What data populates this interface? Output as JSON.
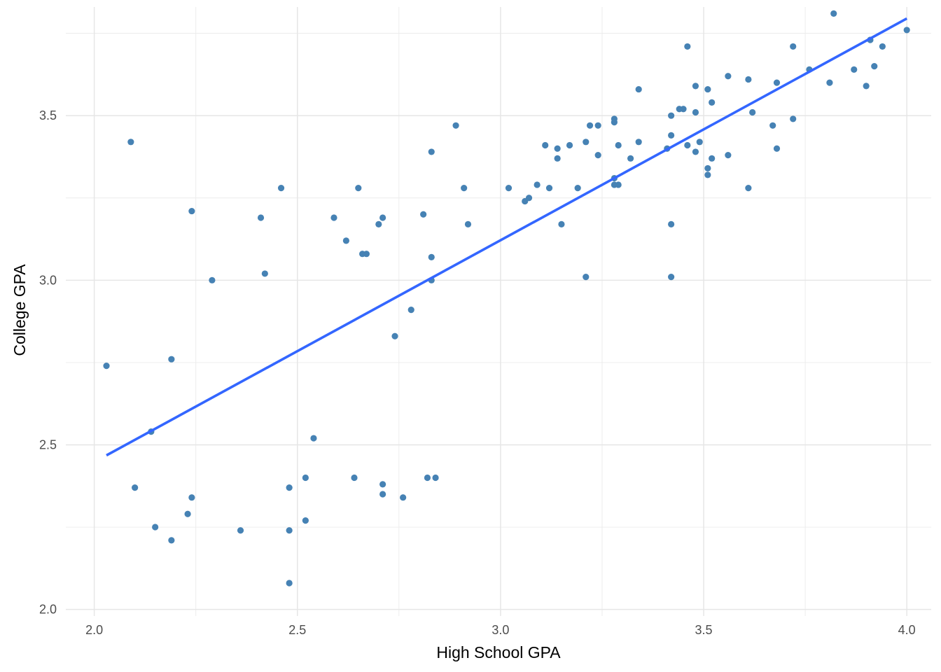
{
  "chart_data": {
    "type": "scatter",
    "title": "",
    "xlabel": "High School GPA",
    "ylabel": "College GPA",
    "xlim": [
      1.93,
      4.06
    ],
    "ylim": [
      1.98,
      3.83
    ],
    "x_ticks": [
      "2.0",
      "2.5",
      "3.0",
      "3.5",
      "4.0"
    ],
    "y_ticks": [
      "2.0",
      "2.5",
      "3.0",
      "3.5"
    ],
    "grid": true,
    "point_color": "#4682B4",
    "line_color": "#3366FF",
    "points": [
      [
        2.03,
        2.74
      ],
      [
        2.09,
        3.42
      ],
      [
        2.1,
        2.37
      ],
      [
        2.14,
        2.54
      ],
      [
        2.15,
        2.25
      ],
      [
        2.19,
        2.76
      ],
      [
        2.19,
        2.21
      ],
      [
        2.23,
        2.29
      ],
      [
        2.24,
        3.21
      ],
      [
        2.24,
        2.34
      ],
      [
        2.29,
        3.0
      ],
      [
        2.36,
        2.24
      ],
      [
        2.41,
        3.19
      ],
      [
        2.42,
        3.02
      ],
      [
        2.46,
        3.28
      ],
      [
        2.48,
        2.37
      ],
      [
        2.48,
        2.24
      ],
      [
        2.48,
        2.08
      ],
      [
        2.52,
        2.4
      ],
      [
        2.52,
        2.27
      ],
      [
        2.54,
        2.52
      ],
      [
        2.59,
        3.19
      ],
      [
        2.62,
        3.12
      ],
      [
        2.64,
        2.4
      ],
      [
        2.65,
        3.28
      ],
      [
        2.66,
        3.08
      ],
      [
        2.67,
        3.08
      ],
      [
        2.7,
        3.17
      ],
      [
        2.71,
        3.19
      ],
      [
        2.71,
        2.38
      ],
      [
        2.71,
        2.35
      ],
      [
        2.74,
        2.83
      ],
      [
        2.76,
        2.34
      ],
      [
        2.78,
        2.91
      ],
      [
        2.81,
        3.2
      ],
      [
        2.82,
        2.4
      ],
      [
        2.83,
        3.39
      ],
      [
        2.83,
        3.07
      ],
      [
        2.83,
        3.0
      ],
      [
        2.84,
        2.4
      ],
      [
        2.89,
        3.47
      ],
      [
        2.91,
        3.28
      ],
      [
        2.92,
        3.17
      ],
      [
        3.02,
        3.28
      ],
      [
        3.06,
        3.24
      ],
      [
        3.07,
        3.25
      ],
      [
        3.09,
        3.29
      ],
      [
        3.11,
        3.41
      ],
      [
        3.12,
        3.28
      ],
      [
        3.14,
        3.4
      ],
      [
        3.14,
        3.37
      ],
      [
        3.15,
        3.17
      ],
      [
        3.17,
        3.41
      ],
      [
        3.19,
        3.28
      ],
      [
        3.21,
        3.42
      ],
      [
        3.21,
        3.01
      ],
      [
        3.22,
        3.47
      ],
      [
        3.24,
        3.47
      ],
      [
        3.24,
        3.38
      ],
      [
        3.28,
        3.49
      ],
      [
        3.28,
        3.48
      ],
      [
        3.28,
        3.31
      ],
      [
        3.28,
        3.29
      ],
      [
        3.29,
        3.41
      ],
      [
        3.29,
        3.29
      ],
      [
        3.32,
        3.37
      ],
      [
        3.34,
        3.58
      ],
      [
        3.34,
        3.42
      ],
      [
        3.41,
        3.4
      ],
      [
        3.42,
        3.5
      ],
      [
        3.42,
        3.44
      ],
      [
        3.42,
        3.17
      ],
      [
        3.42,
        3.01
      ],
      [
        3.44,
        3.52
      ],
      [
        3.45,
        3.52
      ],
      [
        3.46,
        3.71
      ],
      [
        3.46,
        3.41
      ],
      [
        3.48,
        3.59
      ],
      [
        3.48,
        3.51
      ],
      [
        3.48,
        3.39
      ],
      [
        3.49,
        3.42
      ],
      [
        3.51,
        3.58
      ],
      [
        3.51,
        3.34
      ],
      [
        3.51,
        3.32
      ],
      [
        3.52,
        3.54
      ],
      [
        3.52,
        3.37
      ],
      [
        3.56,
        3.62
      ],
      [
        3.56,
        3.38
      ],
      [
        3.61,
        3.61
      ],
      [
        3.61,
        3.28
      ],
      [
        3.62,
        3.51
      ],
      [
        3.67,
        3.47
      ],
      [
        3.68,
        3.6
      ],
      [
        3.68,
        3.4
      ],
      [
        3.72,
        3.71
      ],
      [
        3.72,
        3.49
      ],
      [
        3.76,
        3.64
      ],
      [
        3.81,
        3.6
      ],
      [
        3.82,
        3.81
      ],
      [
        3.87,
        3.64
      ],
      [
        3.9,
        3.59
      ],
      [
        3.91,
        3.73
      ],
      [
        3.92,
        3.65
      ],
      [
        3.94,
        3.71
      ],
      [
        4.0,
        3.76
      ]
    ],
    "fit_line": {
      "x": [
        2.03,
        4.0
      ],
      "y": [
        2.468,
        3.795
      ]
    }
  }
}
